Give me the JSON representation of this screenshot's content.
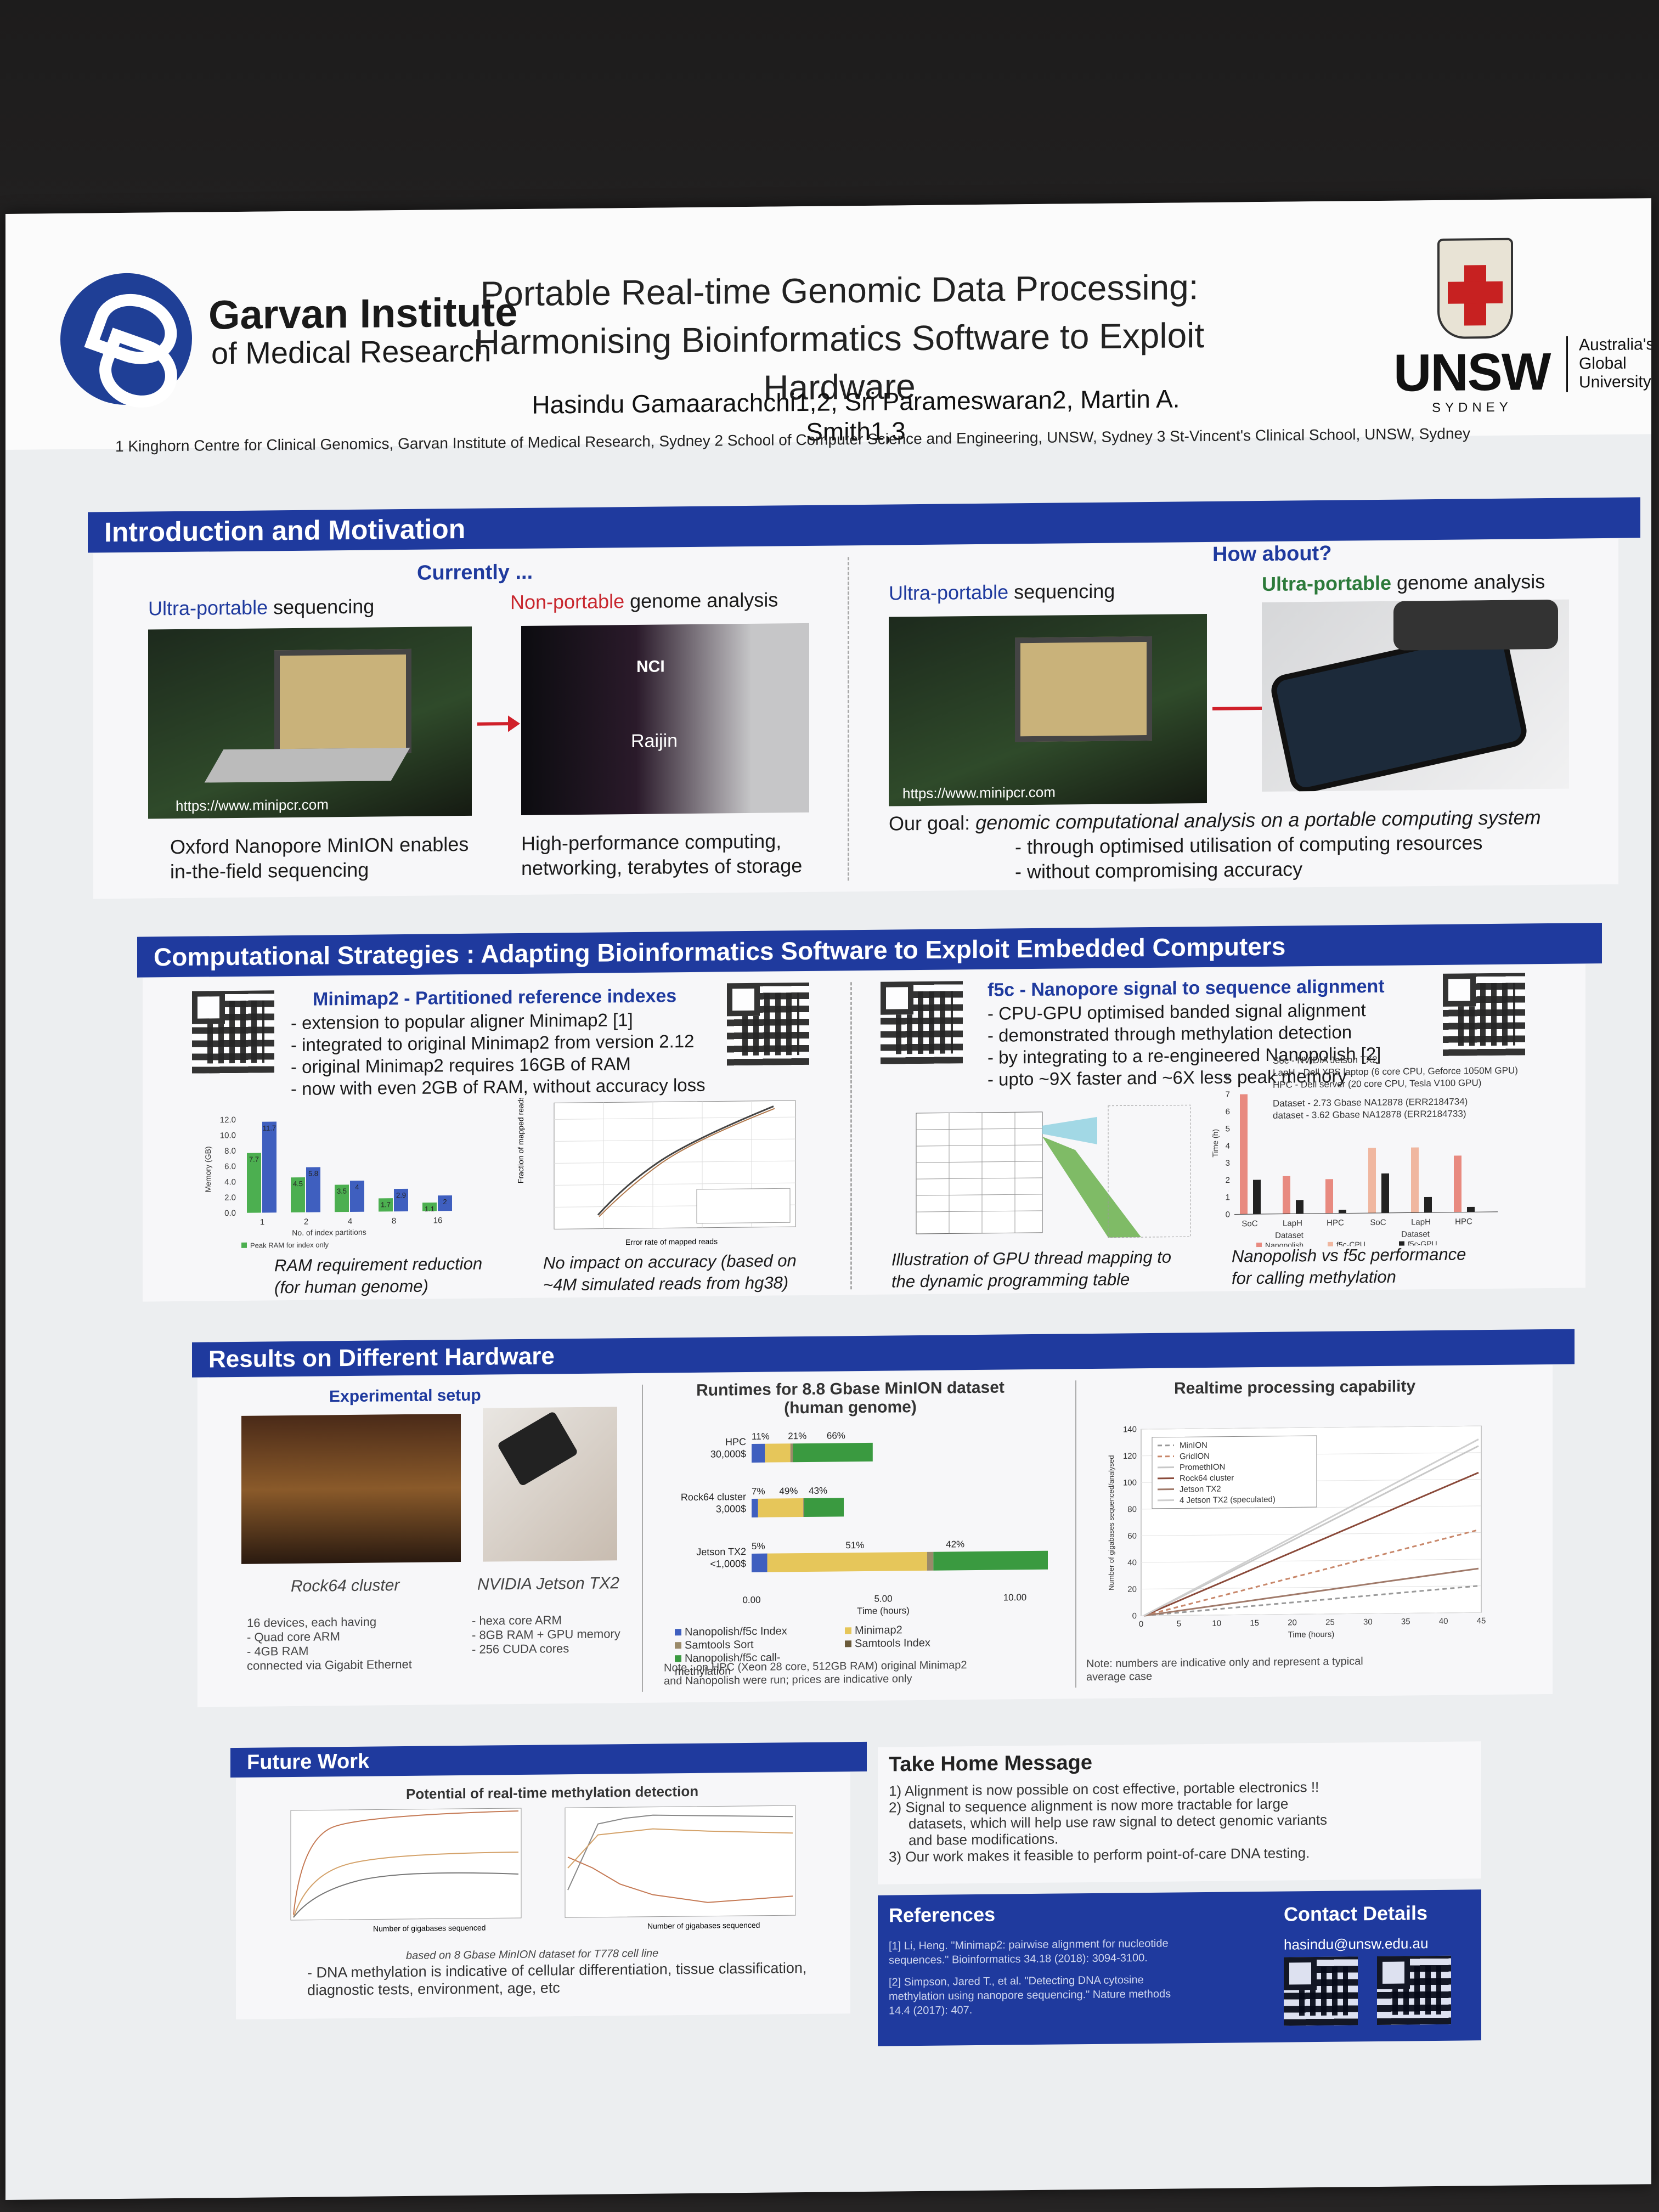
{
  "header": {
    "garvan_line1": "Garvan Institute",
    "garvan_line2": "of Medical Research",
    "title_line1": "Portable Real-time Genomic Data Processing:",
    "title_line2": "Harmonising Bioinformatics Software to Exploit Hardware",
    "authors": "Hasindu Gamaarachchi1,2, Sri Parameswaran2, Martin A. Smith1,3",
    "affiliations": "1 Kinghorn Centre for Clinical Genomics, Garvan Institute of Medical Research, Sydney    2 School of Computer Science and Engineering, UNSW, Sydney    3 St-Vincent's Clinical School, UNSW, Sydney",
    "unsw": "UNSW",
    "sydney": "SYDNEY",
    "australia_global": [
      "Australia's",
      "Global",
      "University"
    ]
  },
  "intro": {
    "heading": "Introduction and Motivation",
    "currently": "Currently ...",
    "how_about": "How about?",
    "ultra_portable": "Ultra-portable",
    "sequencing": " sequencing",
    "non_portable": "Non-portable",
    "genome_analysis": " genome analysis",
    "url": "https://www.minipcr.com",
    "caption1_l1": "Oxford Nanopore MinION enables",
    "caption1_l2": "in-the-field sequencing",
    "caption2_l1": "High-performance computing,",
    "caption2_l2": "networking, terabytes of storage",
    "goal_prefix": "Our goal: ",
    "goal_text": "genomic computational analysis on a portable computing system",
    "goal_l2": "- through optimised utilisation of computing resources",
    "goal_l3": "- without compromising accuracy",
    "nci": "NCI",
    "raijin": "Raijin"
  },
  "strategies": {
    "heading": "Computational Strategies : Adapting Bioinformatics Software to Exploit Embedded Computers",
    "minimap_title": "Minimap2 - Partitioned reference indexes",
    "minimap_bullets": [
      "- extension to popular aligner Minimap2 [1]",
      "- integrated to original Minimap2 from version 2.12",
      "- original Minimap2 requires 16GB of RAM",
      "- now with even 2GB of RAM, without accuracy loss"
    ],
    "f5c_title": "f5c - Nanopore signal to sequence alignment",
    "f5c_bullets": [
      "- CPU-GPU optimised banded signal alignment",
      "- demonstrated through methylation detection",
      "- by integrating to a re-engineered Nanopolish [2]",
      "- upto ~9X faster and ~6X less peak memory"
    ],
    "caption_ram_l1": "RAM requirement reduction",
    "caption_ram_l2": "(for human genome)",
    "caption_acc_l1": "No impact on accuracy (based on",
    "caption_acc_l2": "~4M simulated reads from hg38)",
    "caption_gpu_l1": "Illustration of GPU thread mapping to",
    "caption_gpu_l2": "the dynamic programming table",
    "caption_perf_l1": "Nanopolish vs f5c performance",
    "caption_perf_l2": "for calling methylation",
    "ram_legend": [
      "Peak RAM for index only",
      "Recommended RAM for mapping"
    ],
    "ram_xlabel": "No. of index partitions",
    "ram_ylabel": "Memory (GB)",
    "acc_xlabel": "Error rate of mapped reads",
    "acc_ylabel": "Fraction of mapped reads",
    "acc_legend": [
      "single part index",
      "merged - 2 part index",
      "merged - 4 part index",
      "merged - 8 part index",
      "merged - 16 part index"
    ],
    "perf_notes": [
      "Soc - NVIDIA Jetson TX2",
      "LapH - Dell XPS laptop (6 core CPU, Geforce 1050M GPU)",
      "HPC - Dell server (20 core CPU, Tesla V100 GPU)",
      "Dataset - 2.73 Gbase NA12878 (ERR2184734)",
      "dataset - 3.62 Gbase NA12878 (ERR2184733)"
    ],
    "perf_ylabel": "Time (h)",
    "perf_legend": [
      "Nanopolish",
      "f5c-CPU",
      "f5c-GPU"
    ],
    "perf_cats": [
      "SoC",
      "LapH",
      "HPC",
      "SoC",
      "LapH",
      "HPC"
    ],
    "perf_groups": [
      "Dataset",
      "Dataset"
    ]
  },
  "results": {
    "heading": "Results on Different Hardware",
    "setup_title": "Experimental setup",
    "rock64_caption": "Rock64 cluster",
    "jetson_caption": "NVIDIA Jetson TX2",
    "rock64_specs": [
      "16 devices, each having",
      "- Quad core ARM",
      "- 4GB RAM",
      "connected via Gigabit Ethernet"
    ],
    "jetson_specs": [
      "- hexa core ARM",
      "- 8GB RAM + GPU memory",
      "- 256 CUDA cores"
    ],
    "runtime_title_l1": "Runtimes for 8.8 Gbase MinION dataset",
    "runtime_title_l2": "(human genome)",
    "runtime_xlabel": "Time (hours)",
    "runtime_note_l1": "Note : on HPC (Xeon 28 core, 512GB RAM) original Minimap2",
    "runtime_note_l2": "and Nanopolish were run; prices are indicative only",
    "realtime_title": "Realtime processing capability",
    "realtime_xlabel": "Time (hours)",
    "realtime_ylabel": "Number of gigabases sequenced/analysed",
    "realtime_note_l1": "Note: numbers are indicative only and represent a typical",
    "realtime_note_l2": "average case"
  },
  "future": {
    "heading": "Future Work",
    "subtitle": "Potential of real-time methylation detection",
    "dataset_note": "based on 8 Gbase MinION dataset for T778 cell line",
    "xlabel": "Number of gigabases sequenced",
    "bullet_l1": "- DNA methylation is indicative of cellular differentiation, tissue classification,",
    "bullet_l2": "diagnostic tests, environment, age, etc"
  },
  "takehome": {
    "heading": "Take Home Message",
    "items": [
      "1) Alignment is now possible on cost effective, portable electronics !!",
      "2) Signal to sequence alignment is now more tractable for large",
      "datasets, which will help use raw signal to detect genomic variants",
      "and base modifications.",
      "3) Our work makes it feasible to perform point-of-care DNA testing."
    ]
  },
  "references": {
    "heading": "References",
    "items": [
      "[1] Li, Heng. \"Minimap2: pairwise alignment for nucleotide",
      "sequences.\" Bioinformatics 34.18 (2018): 3094-3100.",
      "[2] Simpson, Jared T., et al. \"Detecting DNA cytosine",
      "methylation using nanopore sequencing.\" Nature methods",
      "14.4 (2017): 407."
    ]
  },
  "contact": {
    "heading": "Contact Details",
    "email": "hasindu@unsw.edu.au"
  },
  "colors": {
    "band_blue": "#1f3a9e",
    "bar_green": "#4caf50",
    "bar_blue": "#3f5fbf",
    "bar_yellow": "#e6c65a",
    "bar_red": "#e88a80"
  },
  "chart_data": [
    {
      "type": "bar",
      "categories": [
        "1",
        "2",
        "4",
        "8",
        "16"
      ],
      "series": [
        {
          "name": "Peak RAM for index only",
          "values": [
            7.7,
            4.5,
            3.5,
            1.7,
            1.1
          ]
        },
        {
          "name": "Recommended RAM for mapping",
          "values": [
            11.7,
            5.8,
            4.0,
            2.9,
            2.0
          ]
        }
      ],
      "xlabel": "No. of index partitions",
      "ylabel": "Memory (GB)",
      "ylim": [
        0,
        12
      ],
      "yticks": [
        "0.0",
        "2.0",
        "4.0",
        "6.0",
        "8.0",
        "10.0",
        "12.0"
      ],
      "data_labels": [
        "7.7",
        "11.7",
        "4.5",
        "5.8",
        "3.5",
        "4",
        "1.7",
        "2.9",
        "1.1",
        "2"
      ],
      "legend": "bottom"
    },
    {
      "type": "bar",
      "categories": [
        "HPC 30,000$",
        "Rock64 cluster 3,000$",
        "Jetson TX2 <1,000$"
      ],
      "orientation": "horizontal",
      "series": [
        {
          "name": "Nanopolish/f5c Index",
          "values": [
            0.11,
            0.07,
            0.05
          ]
        },
        {
          "name": "Minimap2",
          "values": [
            0.21,
            0.49,
            0.51
          ]
        },
        {
          "name": "Samtools Sort",
          "values": [
            0.02,
            0.01,
            0.02
          ]
        },
        {
          "name": "Nanopolish/f5c call-methylation",
          "values": [
            0.66,
            0.43,
            0.42
          ]
        }
      ],
      "totals_hours": [
        4.6,
        3.5,
        11.9
      ],
      "percent_labels": [
        [
          "11%",
          "21%",
          "66%"
        ],
        [
          "7%",
          "49%",
          "43%"
        ],
        [
          "5%",
          "51%",
          "42%"
        ]
      ],
      "xlabel": "Time (hours)",
      "xticks": [
        "0.00",
        "5.00",
        "10.00"
      ],
      "legend_items": [
        "Nanopolish/f5c Index",
        "Minimap2",
        "Samtools Sort",
        "Samtools Index",
        "Nanopolish/f5c call-methylation"
      ]
    },
    {
      "type": "line",
      "x": [
        0,
        45
      ],
      "series": [
        {
          "name": "MinION",
          "values": [
            0,
            20
          ]
        },
        {
          "name": "GridION",
          "values": [
            0,
            62
          ]
        },
        {
          "name": "PromethION",
          "values": [
            0,
            125
          ]
        },
        {
          "name": "Rock64 cluster",
          "values": [
            0,
            105
          ]
        },
        {
          "name": "Jetson TX2",
          "values": [
            0,
            33
          ]
        },
        {
          "name": "4 Jetson TX2 (speculated)",
          "values": [
            0,
            130
          ]
        }
      ],
      "xlabel": "Time (hours)",
      "ylabel": "Number of gigabases sequenced/analysed",
      "xticks": [
        "0",
        "5",
        "10",
        "15",
        "20",
        "25",
        "30",
        "35",
        "40",
        "45"
      ],
      "yticks": [
        "0",
        "20",
        "40",
        "60",
        "80",
        "100",
        "120",
        "140"
      ]
    },
    {
      "type": "bar",
      "categories": [
        "SoC",
        "LapH",
        "HPC",
        "SoC",
        "LapH",
        "HPC"
      ],
      "series": [
        {
          "name": "Nanopolish",
          "values": [
            7.0,
            2.2,
            2.0,
            0,
            0,
            3.3
          ]
        },
        {
          "name": "f5c-CPU",
          "values": [
            0,
            0,
            0,
            3.8,
            3.8,
            0
          ]
        },
        {
          "name": "f5c-GPU",
          "values": [
            2.0,
            0.8,
            0.2,
            2.3,
            0.9,
            0.3
          ]
        }
      ],
      "ylabel": "Time (h)",
      "ylim": [
        0,
        8
      ],
      "yticks": [
        "0",
        "1",
        "2",
        "3",
        "4",
        "5",
        "6",
        "7",
        "8"
      ]
    }
  ]
}
